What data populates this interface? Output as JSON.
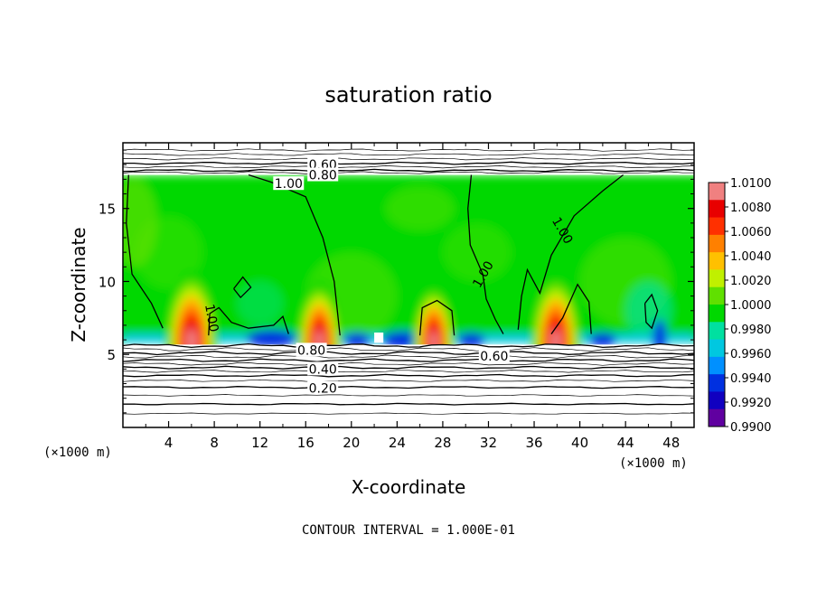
{
  "chart_data": {
    "type": "heatmap",
    "title": "saturation ratio",
    "xlabel": "X-coordinate",
    "ylabel": "Z-coordinate",
    "x_unit_label": "(×1000 m)",
    "x_ticks": [
      4,
      8,
      12,
      16,
      20,
      24,
      28,
      32,
      36,
      40,
      44,
      48
    ],
    "y_ticks": [
      5,
      10,
      15
    ],
    "xlim": [
      0,
      50
    ],
    "ylim": [
      0,
      19.5
    ],
    "footer": "CONTOUR INTERVAL = 1.000E-01",
    "colorbar": {
      "min": 0.99,
      "max": 1.01,
      "labels": [
        "1.0100",
        "1.0080",
        "1.0060",
        "1.0040",
        "1.0020",
        "1.0000",
        "0.9980",
        "0.9960",
        "0.9940",
        "0.9920",
        "0.9900"
      ],
      "colors": [
        "#f08080",
        "#e80000",
        "#ff3000",
        "#ff8000",
        "#ffc000",
        "#c0f000",
        "#60e000",
        "#00d800",
        "#00e0a0",
        "#00c8e0",
        "#0090ff",
        "#0030e0",
        "#1000c0",
        "#6000a0"
      ]
    },
    "contour_labels": [
      {
        "text": "0.60",
        "x": 17.5,
        "z": 18.0
      },
      {
        "text": "0.80",
        "x": 17.5,
        "z": 17.3
      },
      {
        "text": "1.00",
        "x": 14.5,
        "z": 16.7
      },
      {
        "text": "1.00",
        "x": 7.8,
        "z": 7.5
      },
      {
        "text": "1.00",
        "x": 31.5,
        "z": 10.5
      },
      {
        "text": "1.00",
        "x": 38.5,
        "z": 13.5
      },
      {
        "text": "0.80",
        "x": 16.5,
        "z": 5.3
      },
      {
        "text": "0.60",
        "x": 32.5,
        "z": 4.9
      },
      {
        "text": "0.40",
        "x": 17.5,
        "z": 4.0
      },
      {
        "text": "0.20",
        "x": 17.5,
        "z": 2.7
      }
    ],
    "saturated_layer_z": [
      5.8,
      17.3
    ],
    "warm_cores": [
      {
        "x": 6.0,
        "z": 5.9,
        "strength": 1.0
      },
      {
        "x": 17.2,
        "z": 5.9,
        "strength": 0.85
      },
      {
        "x": 27.2,
        "z": 5.9,
        "strength": 0.8
      },
      {
        "x": 37.9,
        "z": 5.9,
        "strength": 0.95
      }
    ]
  }
}
